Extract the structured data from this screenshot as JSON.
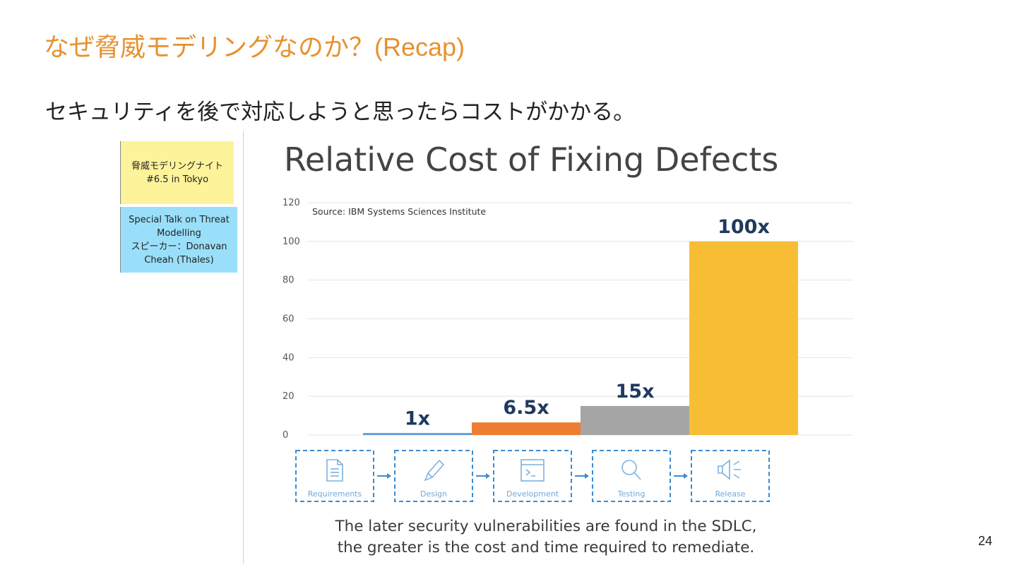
{
  "slide": {
    "title": "なぜ脅威モデリングなのか？(Recap)",
    "subtitle": "セキュリティを後で対応しようと思ったらコストがかかる。",
    "page_number": "24"
  },
  "notes": {
    "yellow": {
      "line1": "脅威モデリングナイト",
      "line2": "#6.5 in Tokyo",
      "color": "#FDF39A"
    },
    "blue": {
      "line1": "Special Talk on Threat Modelling",
      "line2": "スピーカー：Donavan Cheah (Thales)",
      "color": "#9ADFFA"
    }
  },
  "chart_data": {
    "type": "bar",
    "title": "Relative Cost of Fixing Defects",
    "source": "Source: IBM Systems Sciences Institute",
    "categories": [
      "Requirements",
      "Design",
      "Development",
      "Testing",
      "Release"
    ],
    "values": [
      0,
      1,
      6.5,
      15,
      100
    ],
    "data_labels": [
      "",
      "1x",
      "6.5x",
      "15x",
      "100x"
    ],
    "colors": [
      "#5B9BD5",
      "#5B9BD5",
      "#ED7D31",
      "#A5A5A5",
      "#F7BE35"
    ],
    "ylim": [
      0,
      120
    ],
    "yticks": [
      0,
      20,
      40,
      60,
      80,
      100,
      120
    ],
    "grid": true,
    "phase_icons": [
      "document-icon",
      "pencil-icon",
      "terminal-window-icon",
      "magnifier-icon",
      "megaphone-icon"
    ],
    "caption_line1": "The later security vulnerabilities are found in the SDLC,",
    "caption_line2": "the greater is the cost and time required to remediate."
  }
}
